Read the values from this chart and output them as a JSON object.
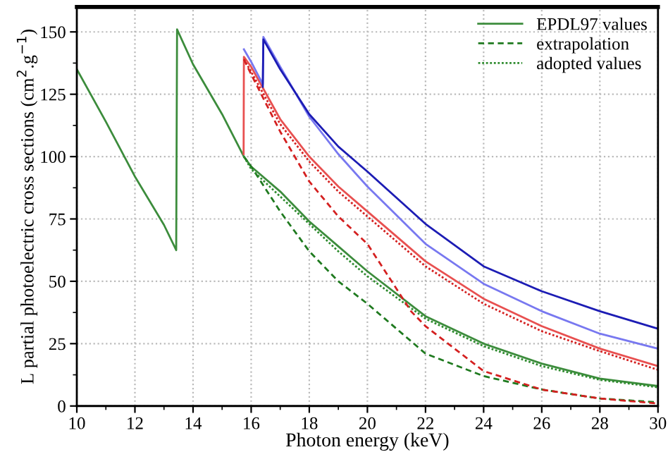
{
  "chart_data": {
    "type": "line",
    "xlabel": "Photon energy (keV)",
    "ylabel": "L partial photoelectric cross sections (cm$^{2}$.g$^{−1}$)",
    "xlim": [
      10,
      30
    ],
    "ylim": [
      0,
      160
    ],
    "xticks": [
      10,
      12,
      14,
      16,
      18,
      20,
      22,
      24,
      26,
      28,
      30
    ],
    "yticks": [
      0,
      25,
      50,
      75,
      100,
      125,
      150
    ],
    "grid": true,
    "legend": "top right",
    "series": [
      {
        "name": "EPDL97 values",
        "color": "#3c8c3c",
        "line_style": "solid",
        "x": [
          10,
          11,
          12,
          13,
          13.42,
          13.45,
          14,
          15,
          15.75,
          16,
          17,
          18,
          19,
          20,
          22,
          24,
          26,
          28,
          30
        ],
        "values": [
          135,
          114,
          92,
          72.6,
          62.5,
          151,
          137,
          117,
          100,
          96,
          86,
          74,
          64,
          54,
          36,
          25,
          17,
          11,
          8
        ]
      },
      {
        "name": "extrapolation",
        "color": "#1f7a1f",
        "line_style": "dashed",
        "x": [
          15.75,
          16,
          17,
          18,
          19,
          20,
          22,
          24,
          26,
          28,
          30
        ],
        "values": [
          100,
          96,
          78,
          62,
          50,
          41,
          21,
          12,
          6.6,
          3,
          1.5
        ]
      },
      {
        "name": "adopted values",
        "color": "#2e8b2e",
        "line_style": "dotted",
        "x": [
          15.75,
          16,
          17,
          18,
          19,
          20,
          22,
          24,
          26,
          28,
          30
        ],
        "values": [
          100,
          95,
          84,
          73,
          62,
          52,
          35,
          24,
          16,
          10.5,
          7.5
        ]
      },
      {
        "color": "#e85050",
        "line_style": "solid",
        "x": [
          15.74,
          15.75,
          16,
          17,
          18,
          19,
          20,
          22,
          24,
          26,
          28,
          30
        ],
        "values": [
          101,
          140,
          136,
          115,
          100,
          88,
          78,
          58,
          43,
          32,
          23,
          16
        ]
      },
      {
        "color": "#d42020",
        "line_style": "dotted",
        "x": [
          15.75,
          16,
          17,
          18,
          19,
          20,
          22,
          24,
          26,
          28,
          30
        ],
        "values": [
          139,
          134,
          113,
          98,
          86,
          76,
          56,
          41,
          30,
          22,
          14.5
        ]
      },
      {
        "color": "#d42020",
        "line_style": "dashed",
        "x": [
          15.75,
          16,
          17,
          18,
          19,
          20,
          21.5,
          22,
          24,
          26,
          28,
          30
        ],
        "values": [
          139,
          133,
          110,
          90,
          76,
          65,
          38,
          32,
          14,
          6.6,
          3,
          1
        ]
      },
      {
        "color": "#7878f0",
        "line_style": "solid",
        "x": [
          15.75,
          16,
          16.4,
          16.42,
          17,
          18,
          19,
          20,
          22,
          24,
          26,
          28,
          30
        ],
        "values": [
          143,
          138,
          129,
          148,
          136,
          116,
          101,
          88,
          65,
          49,
          38,
          29,
          23
        ]
      },
      {
        "color": "#1c1cb4",
        "line_style": "solid",
        "x": [
          16.4,
          16.42,
          17,
          18,
          19,
          20,
          22,
          24,
          26,
          28,
          30
        ],
        "values": [
          128,
          147,
          135,
          117,
          104,
          94,
          73,
          56,
          46,
          38,
          31
        ]
      }
    ]
  }
}
